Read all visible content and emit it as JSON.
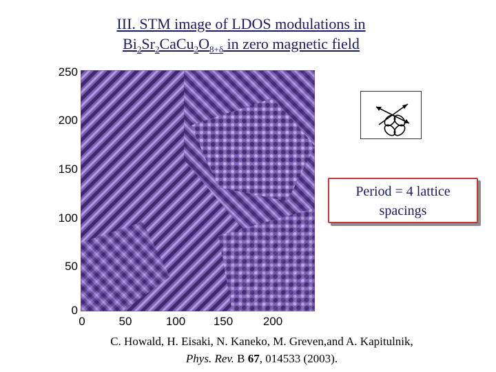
{
  "title": {
    "line1": "III. STM image of LDOS modulations in",
    "formula_parts": [
      "Bi",
      "2",
      "Sr",
      "2",
      "Ca",
      "Cu",
      "2",
      "O",
      "8+δ"
    ],
    "line2_suffix": " in zero magnetic field"
  },
  "axes": {
    "y_ticks": [
      "250",
      "200",
      "150",
      "100",
      "50",
      "0"
    ],
    "x_ticks": [
      "0",
      "50",
      "100",
      "150",
      "200"
    ],
    "y_range": [
      0,
      250
    ],
    "x_range": [
      0,
      240
    ]
  },
  "annotation": {
    "line1": "Period = 4 lattice",
    "line2": "spacings"
  },
  "citation": {
    "authors": "C. Howald, H. Eisaki, N. Kaneko, M. Greven,and A. Kapitulnik,",
    "journal": "Phys. Rev.",
    "journal_b": " B ",
    "volume": "67",
    "rest": ", 014533 (2003)."
  },
  "colors": {
    "image_base": "#6a4fa3",
    "image_dark": "#2a1650",
    "image_light": "#c9b6ec",
    "title": "#1a1a66",
    "box_border": "#cc3333"
  },
  "icons": {
    "inset": "d-wave-orbital-icon"
  }
}
